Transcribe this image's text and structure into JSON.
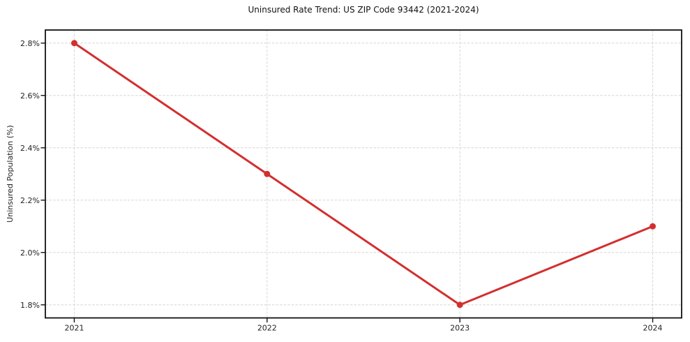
{
  "chart_data": {
    "type": "line",
    "title": "Uninsured Rate Trend: US ZIP Code 93442 (2021-2024)",
    "xlabel": "",
    "ylabel": "Uninsured Population (%)",
    "x": [
      2021,
      2022,
      2023,
      2024
    ],
    "x_tick_labels": [
      "2021",
      "2022",
      "2023",
      "2024"
    ],
    "series": [
      {
        "values": [
          2.8,
          2.3,
          1.8,
          2.1
        ],
        "color": "#d32f2f",
        "marker": "circle"
      }
    ],
    "y_ticks": [
      1.8,
      2.0,
      2.2,
      2.4,
      2.6,
      2.8
    ],
    "y_tick_labels": [
      "1.8%",
      "2.0%",
      "2.2%",
      "2.4%",
      "2.6%",
      "2.8%"
    ],
    "xlim": [
      2020.85,
      2024.15
    ],
    "ylim": [
      1.75,
      2.85
    ],
    "grid": true,
    "grid_style": "dashed",
    "grid_color": "#d6d6d6",
    "axis_color": "#111111",
    "background_color": "#ffffff",
    "legend": "none"
  }
}
